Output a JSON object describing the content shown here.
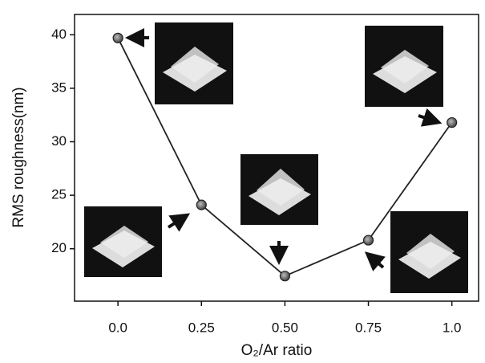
{
  "chart_data": {
    "type": "line",
    "x_label": "O₂/Ar ratio",
    "y_label": "RMS roughness(nm)",
    "x": [
      0,
      0.25,
      0.5,
      0.75,
      1.0
    ],
    "series": [
      {
        "color": "#222222",
        "values": [
          39.7,
          24.1,
          17.45,
          20.8,
          31.8
        ]
      }
    ],
    "xlim": [
      -0.13,
      1.08
    ],
    "ylim": [
      15.1,
      41.9
    ],
    "xticks": [
      {
        "value": 0,
        "label": "0.0"
      },
      0.25,
      {
        "value": 0.5,
        "label": "0.50"
      },
      0.75,
      {
        "value": 1,
        "label": "1.0"
      }
    ],
    "yticks": [
      20,
      25,
      30,
      35,
      40
    ]
  }
}
